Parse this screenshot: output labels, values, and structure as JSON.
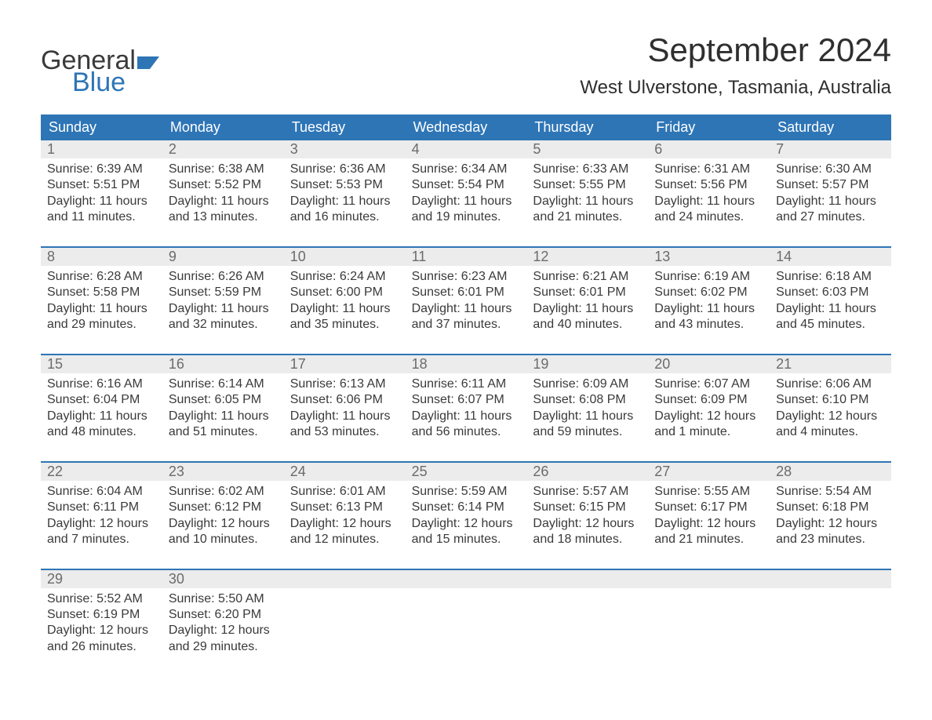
{
  "logo": {
    "line1": "General",
    "line2": "Blue"
  },
  "title": "September 2024",
  "subtitle": "West Ulverstone, Tasmania, Australia",
  "colors": {
    "header_bg": "#2e75b6",
    "header_text": "#ffffff",
    "daynum_bg": "#ececec",
    "daynum_text": "#6b6b6b",
    "body_text": "#3a3a3a",
    "divider": "#2e75b6",
    "background": "#ffffff"
  },
  "fontsizes": {
    "title": 42,
    "subtitle": 24,
    "weekday": 18,
    "daynum": 18,
    "body": 16,
    "logo": 34
  },
  "weekdays": [
    "Sunday",
    "Monday",
    "Tuesday",
    "Wednesday",
    "Thursday",
    "Friday",
    "Saturday"
  ],
  "weeks": [
    {
      "days": [
        {
          "n": "1",
          "sunrise": "Sunrise: 6:39 AM",
          "sunset": "Sunset: 5:51 PM",
          "dl1": "Daylight: 11 hours",
          "dl2": "and 11 minutes."
        },
        {
          "n": "2",
          "sunrise": "Sunrise: 6:38 AM",
          "sunset": "Sunset: 5:52 PM",
          "dl1": "Daylight: 11 hours",
          "dl2": "and 13 minutes."
        },
        {
          "n": "3",
          "sunrise": "Sunrise: 6:36 AM",
          "sunset": "Sunset: 5:53 PM",
          "dl1": "Daylight: 11 hours",
          "dl2": "and 16 minutes."
        },
        {
          "n": "4",
          "sunrise": "Sunrise: 6:34 AM",
          "sunset": "Sunset: 5:54 PM",
          "dl1": "Daylight: 11 hours",
          "dl2": "and 19 minutes."
        },
        {
          "n": "5",
          "sunrise": "Sunrise: 6:33 AM",
          "sunset": "Sunset: 5:55 PM",
          "dl1": "Daylight: 11 hours",
          "dl2": "and 21 minutes."
        },
        {
          "n": "6",
          "sunrise": "Sunrise: 6:31 AM",
          "sunset": "Sunset: 5:56 PM",
          "dl1": "Daylight: 11 hours",
          "dl2": "and 24 minutes."
        },
        {
          "n": "7",
          "sunrise": "Sunrise: 6:30 AM",
          "sunset": "Sunset: 5:57 PM",
          "dl1": "Daylight: 11 hours",
          "dl2": "and 27 minutes."
        }
      ]
    },
    {
      "days": [
        {
          "n": "8",
          "sunrise": "Sunrise: 6:28 AM",
          "sunset": "Sunset: 5:58 PM",
          "dl1": "Daylight: 11 hours",
          "dl2": "and 29 minutes."
        },
        {
          "n": "9",
          "sunrise": "Sunrise: 6:26 AM",
          "sunset": "Sunset: 5:59 PM",
          "dl1": "Daylight: 11 hours",
          "dl2": "and 32 minutes."
        },
        {
          "n": "10",
          "sunrise": "Sunrise: 6:24 AM",
          "sunset": "Sunset: 6:00 PM",
          "dl1": "Daylight: 11 hours",
          "dl2": "and 35 minutes."
        },
        {
          "n": "11",
          "sunrise": "Sunrise: 6:23 AM",
          "sunset": "Sunset: 6:01 PM",
          "dl1": "Daylight: 11 hours",
          "dl2": "and 37 minutes."
        },
        {
          "n": "12",
          "sunrise": "Sunrise: 6:21 AM",
          "sunset": "Sunset: 6:01 PM",
          "dl1": "Daylight: 11 hours",
          "dl2": "and 40 minutes."
        },
        {
          "n": "13",
          "sunrise": "Sunrise: 6:19 AM",
          "sunset": "Sunset: 6:02 PM",
          "dl1": "Daylight: 11 hours",
          "dl2": "and 43 minutes."
        },
        {
          "n": "14",
          "sunrise": "Sunrise: 6:18 AM",
          "sunset": "Sunset: 6:03 PM",
          "dl1": "Daylight: 11 hours",
          "dl2": "and 45 minutes."
        }
      ]
    },
    {
      "days": [
        {
          "n": "15",
          "sunrise": "Sunrise: 6:16 AM",
          "sunset": "Sunset: 6:04 PM",
          "dl1": "Daylight: 11 hours",
          "dl2": "and 48 minutes."
        },
        {
          "n": "16",
          "sunrise": "Sunrise: 6:14 AM",
          "sunset": "Sunset: 6:05 PM",
          "dl1": "Daylight: 11 hours",
          "dl2": "and 51 minutes."
        },
        {
          "n": "17",
          "sunrise": "Sunrise: 6:13 AM",
          "sunset": "Sunset: 6:06 PM",
          "dl1": "Daylight: 11 hours",
          "dl2": "and 53 minutes."
        },
        {
          "n": "18",
          "sunrise": "Sunrise: 6:11 AM",
          "sunset": "Sunset: 6:07 PM",
          "dl1": "Daylight: 11 hours",
          "dl2": "and 56 minutes."
        },
        {
          "n": "19",
          "sunrise": "Sunrise: 6:09 AM",
          "sunset": "Sunset: 6:08 PM",
          "dl1": "Daylight: 11 hours",
          "dl2": "and 59 minutes."
        },
        {
          "n": "20",
          "sunrise": "Sunrise: 6:07 AM",
          "sunset": "Sunset: 6:09 PM",
          "dl1": "Daylight: 12 hours",
          "dl2": "and 1 minute."
        },
        {
          "n": "21",
          "sunrise": "Sunrise: 6:06 AM",
          "sunset": "Sunset: 6:10 PM",
          "dl1": "Daylight: 12 hours",
          "dl2": "and 4 minutes."
        }
      ]
    },
    {
      "days": [
        {
          "n": "22",
          "sunrise": "Sunrise: 6:04 AM",
          "sunset": "Sunset: 6:11 PM",
          "dl1": "Daylight: 12 hours",
          "dl2": "and 7 minutes."
        },
        {
          "n": "23",
          "sunrise": "Sunrise: 6:02 AM",
          "sunset": "Sunset: 6:12 PM",
          "dl1": "Daylight: 12 hours",
          "dl2": "and 10 minutes."
        },
        {
          "n": "24",
          "sunrise": "Sunrise: 6:01 AM",
          "sunset": "Sunset: 6:13 PM",
          "dl1": "Daylight: 12 hours",
          "dl2": "and 12 minutes."
        },
        {
          "n": "25",
          "sunrise": "Sunrise: 5:59 AM",
          "sunset": "Sunset: 6:14 PM",
          "dl1": "Daylight: 12 hours",
          "dl2": "and 15 minutes."
        },
        {
          "n": "26",
          "sunrise": "Sunrise: 5:57 AM",
          "sunset": "Sunset: 6:15 PM",
          "dl1": "Daylight: 12 hours",
          "dl2": "and 18 minutes."
        },
        {
          "n": "27",
          "sunrise": "Sunrise: 5:55 AM",
          "sunset": "Sunset: 6:17 PM",
          "dl1": "Daylight: 12 hours",
          "dl2": "and 21 minutes."
        },
        {
          "n": "28",
          "sunrise": "Sunrise: 5:54 AM",
          "sunset": "Sunset: 6:18 PM",
          "dl1": "Daylight: 12 hours",
          "dl2": "and 23 minutes."
        }
      ]
    },
    {
      "days": [
        {
          "n": "29",
          "sunrise": "Sunrise: 5:52 AM",
          "sunset": "Sunset: 6:19 PM",
          "dl1": "Daylight: 12 hours",
          "dl2": "and 26 minutes."
        },
        {
          "n": "30",
          "sunrise": "Sunrise: 5:50 AM",
          "sunset": "Sunset: 6:20 PM",
          "dl1": "Daylight: 12 hours",
          "dl2": "and 29 minutes."
        },
        {
          "empty": true
        },
        {
          "empty": true
        },
        {
          "empty": true
        },
        {
          "empty": true
        },
        {
          "empty": true
        }
      ]
    }
  ]
}
